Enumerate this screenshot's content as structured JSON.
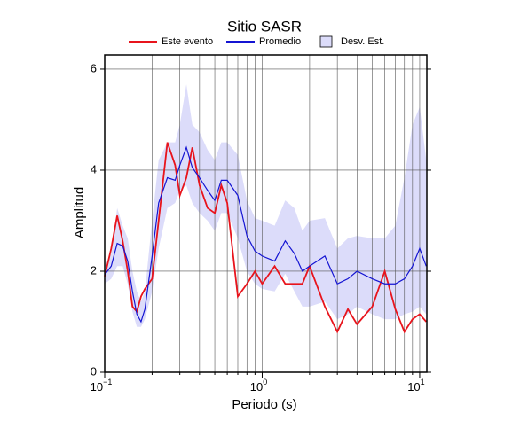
{
  "chart_data": {
    "type": "line",
    "title": "Sitio SASR",
    "x_label": "Periodo (s)",
    "y_label": "Amplitud",
    "x_scale": "log",
    "xlim": [
      0.1,
      11.1
    ],
    "ylim": [
      0,
      6.28
    ],
    "xticks": [
      {
        "value": 0.1,
        "label": "10",
        "exponent": "−1"
      },
      {
        "value": 1,
        "label": "10",
        "exponent": "0"
      },
      {
        "value": 10,
        "label": "10",
        "exponent": "1"
      }
    ],
    "xminor_ticks": [
      0.2,
      0.3,
      0.4,
      0.5,
      0.6,
      0.7,
      0.8,
      0.9,
      2,
      3,
      4,
      5,
      6,
      7,
      8,
      9
    ],
    "yticks": [
      0,
      2,
      4,
      6
    ],
    "grid": true,
    "legend": "top",
    "x": [
      0.1,
      0.11,
      0.12,
      0.13,
      0.14,
      0.15,
      0.16,
      0.17,
      0.18,
      0.2,
      0.22,
      0.25,
      0.28,
      0.3,
      0.33,
      0.36,
      0.4,
      0.45,
      0.5,
      0.55,
      0.6,
      0.7,
      0.8,
      0.9,
      1.0,
      1.2,
      1.4,
      1.6,
      1.8,
      2.0,
      2.5,
      3,
      3.5,
      4,
      5,
      6,
      7,
      8,
      9,
      10,
      11
    ],
    "band": {
      "name": "Desv. Est.",
      "color": "#dcdcfa",
      "lower": [
        1.75,
        1.85,
        2.1,
        2.1,
        1.75,
        1.2,
        0.9,
        0.9,
        1.05,
        1.6,
        2.45,
        3.25,
        3.35,
        3.6,
        3.7,
        3.35,
        3.15,
        3.0,
        2.8,
        3.15,
        3.15,
        2.65,
        2.0,
        1.75,
        1.65,
        1.6,
        1.95,
        1.6,
        1.3,
        1.3,
        1.4,
        1.05,
        1.15,
        1.3,
        1.15,
        1.05,
        1.05,
        1.15,
        1.2,
        1.3,
        1.15
      ],
      "upper": [
        2.1,
        2.35,
        3.25,
        2.9,
        2.65,
        2.0,
        1.6,
        1.4,
        1.6,
        3.0,
        4.2,
        4.55,
        4.55,
        4.9,
        5.7,
        4.9,
        4.75,
        4.4,
        4.2,
        4.55,
        4.55,
        4.3,
        3.4,
        3.05,
        3.0,
        2.9,
        3.4,
        3.25,
        2.8,
        3.0,
        3.05,
        2.45,
        2.65,
        2.7,
        2.65,
        2.65,
        2.9,
        3.85,
        4.9,
        5.25,
        4.2
      ]
    },
    "series": [
      {
        "name": "Este evento",
        "color": "#e8141c",
        "values": [
          1.9,
          2.45,
          3.1,
          2.6,
          2.0,
          1.3,
          1.2,
          1.5,
          1.65,
          1.85,
          3.0,
          4.55,
          4.1,
          3.5,
          3.85,
          4.45,
          3.7,
          3.25,
          3.15,
          3.7,
          3.35,
          1.5,
          1.75,
          2.0,
          1.75,
          2.1,
          1.75,
          1.75,
          1.75,
          2.1,
          1.3,
          0.8,
          1.25,
          0.95,
          1.3,
          2.0,
          1.25,
          0.8,
          1.05,
          1.15,
          1.0
        ]
      },
      {
        "name": "Promedio",
        "color": "#1414d2",
        "values": [
          1.93,
          2.1,
          2.55,
          2.5,
          2.2,
          1.6,
          1.15,
          1.0,
          1.25,
          2.3,
          3.35,
          3.85,
          3.8,
          4.1,
          4.45,
          4.05,
          3.85,
          3.6,
          3.4,
          3.8,
          3.8,
          3.5,
          2.7,
          2.4,
          2.3,
          2.2,
          2.6,
          2.35,
          2.0,
          2.1,
          2.3,
          1.75,
          1.85,
          2.0,
          1.85,
          1.75,
          1.75,
          1.85,
          2.1,
          2.45,
          2.1
        ]
      }
    ]
  }
}
